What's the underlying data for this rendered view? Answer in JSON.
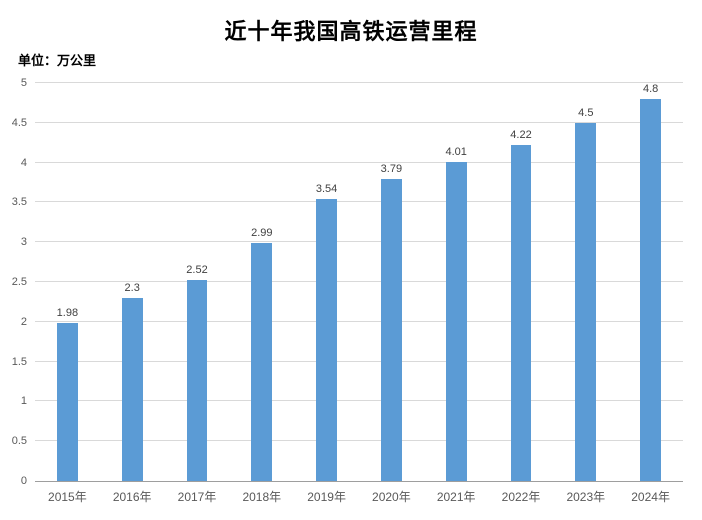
{
  "title": "近十年我国高铁运营里程",
  "unit_label": "单位：万公里",
  "colors": {
    "bar_fill": "#5b9bd5",
    "gridline": "#d9d9d9",
    "axis_line": "#9e9e9e",
    "tick_text": "#595959",
    "value_text": "#404040",
    "title_text": "#000000"
  },
  "chart_data": {
    "type": "bar",
    "title": "近十年我国高铁运营里程",
    "subtitle_unit": "单位：万公里",
    "categories": [
      "2015年",
      "2016年",
      "2017年",
      "2018年",
      "2019年",
      "2020年",
      "2021年",
      "2022年",
      "2023年",
      "2024年"
    ],
    "values": [
      1.98,
      2.3,
      2.52,
      2.99,
      3.54,
      3.79,
      4.01,
      4.22,
      4.5,
      4.8
    ],
    "value_labels": [
      "1.98",
      "2.3",
      "2.52",
      "2.99",
      "3.54",
      "3.79",
      "4.01",
      "4.22",
      "4.5",
      "4.8"
    ],
    "xlabel": "",
    "ylabel": "万公里",
    "ylim": [
      0,
      5
    ],
    "y_tick_step": 0.5,
    "y_tick_labels": [
      "0",
      "0.5",
      "1",
      "1.5",
      "2",
      "2.5",
      "3",
      "3.5",
      "4",
      "4.5",
      "5"
    ],
    "grid": true,
    "legend": false,
    "bar_width_fraction": 0.32
  }
}
